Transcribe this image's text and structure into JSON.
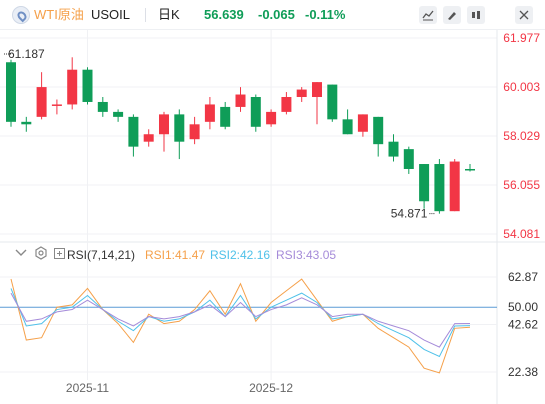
{
  "header": {
    "symbol_name": "WTI原油",
    "symbol_code": "USOIL",
    "period": "日K",
    "price": "56.639",
    "change": "-0.065",
    "change_pct": "-0.11%"
  },
  "indicator": {
    "name": "RSI(7,14,21)",
    "rsi1": "RSI1:41.47",
    "rsi2": "RSI2:42.16",
    "rsi3": "RSI3:43.05",
    "reference_line": "50.00"
  },
  "colors": {
    "up": "#f23645",
    "down": "#0f9d58",
    "rsi1": "#f5a04a",
    "rsi2": "#4fc1e9",
    "rsi3": "#a58bd9",
    "reference": "#5b9bd5",
    "header_price": "#0f9d58"
  },
  "icons": [
    "symbol-icon",
    "line-style-icon",
    "draw-icon",
    "indicator-icon",
    "fullscreen-icon",
    "collapse-icon",
    "settings-icon"
  ],
  "chart_data": [
    {
      "type": "candlestick",
      "y_ticks": [
        "61.977",
        "60.003",
        "58.029",
        "56.055",
        "54.081"
      ],
      "ylim": [
        54.081,
        61.977
      ],
      "annotations": {
        "high": "61.187",
        "low": "54.871"
      },
      "candles": [
        {
          "o": 61.0,
          "h": 61.1,
          "l": 58.4,
          "c": 58.6
        },
        {
          "o": 58.6,
          "h": 58.8,
          "l": 58.2,
          "c": 58.5
        },
        {
          "o": 58.8,
          "h": 60.6,
          "l": 58.7,
          "c": 60.0
        },
        {
          "o": 59.3,
          "h": 59.5,
          "l": 58.9,
          "c": 59.3
        },
        {
          "o": 59.3,
          "h": 61.2,
          "l": 59.1,
          "c": 60.7
        },
        {
          "o": 60.7,
          "h": 60.8,
          "l": 59.3,
          "c": 59.4
        },
        {
          "o": 59.4,
          "h": 59.6,
          "l": 58.8,
          "c": 59.0
        },
        {
          "o": 59.0,
          "h": 59.1,
          "l": 58.6,
          "c": 58.8
        },
        {
          "o": 58.8,
          "h": 58.9,
          "l": 57.2,
          "c": 57.6
        },
        {
          "o": 57.8,
          "h": 58.3,
          "l": 57.6,
          "c": 58.1
        },
        {
          "o": 58.1,
          "h": 59.0,
          "l": 57.4,
          "c": 58.9
        },
        {
          "o": 58.9,
          "h": 59.1,
          "l": 57.1,
          "c": 57.8
        },
        {
          "o": 57.9,
          "h": 58.8,
          "l": 57.7,
          "c": 58.5
        },
        {
          "o": 58.6,
          "h": 59.6,
          "l": 58.3,
          "c": 59.3
        },
        {
          "o": 59.2,
          "h": 59.4,
          "l": 58.3,
          "c": 58.4
        },
        {
          "o": 59.2,
          "h": 60.0,
          "l": 59.0,
          "c": 59.7
        },
        {
          "o": 59.6,
          "h": 59.7,
          "l": 58.2,
          "c": 58.4
        },
        {
          "o": 58.5,
          "h": 59.1,
          "l": 58.4,
          "c": 59.0
        },
        {
          "o": 59.0,
          "h": 59.8,
          "l": 58.9,
          "c": 59.6
        },
        {
          "o": 59.6,
          "h": 60.0,
          "l": 59.4,
          "c": 59.9
        },
        {
          "o": 59.6,
          "h": 60.2,
          "l": 58.5,
          "c": 60.2
        },
        {
          "o": 60.1,
          "h": 60.1,
          "l": 58.6,
          "c": 58.7
        },
        {
          "o": 58.7,
          "h": 59.1,
          "l": 58.1,
          "c": 58.1
        },
        {
          "o": 58.2,
          "h": 58.9,
          "l": 58.0,
          "c": 58.9
        },
        {
          "o": 58.8,
          "h": 58.8,
          "l": 57.2,
          "c": 57.7
        },
        {
          "o": 57.8,
          "h": 58.1,
          "l": 57.0,
          "c": 57.2
        },
        {
          "o": 57.5,
          "h": 57.6,
          "l": 56.5,
          "c": 56.7
        },
        {
          "o": 56.9,
          "h": 56.9,
          "l": 55.1,
          "c": 55.4
        },
        {
          "o": 56.9,
          "h": 57.1,
          "l": 54.9,
          "c": 55.0
        },
        {
          "o": 55.0,
          "h": 57.1,
          "l": 55.0,
          "c": 57.0
        },
        {
          "o": 56.7,
          "h": 56.9,
          "l": 56.6,
          "c": 56.64
        }
      ]
    },
    {
      "type": "line",
      "ylim": [
        22.38,
        62.87
      ],
      "y_ticks": [
        "62.87",
        "50.00",
        "42.62",
        "22.38"
      ],
      "x_labels": [
        {
          "label": "2025-11",
          "index": 5
        },
        {
          "label": "2025-12",
          "index": 17
        }
      ],
      "series": [
        {
          "name": "RSI1",
          "values": [
            62,
            36,
            37,
            50,
            51,
            58,
            49,
            43,
            35,
            47,
            43,
            44,
            49,
            57,
            47,
            60,
            44,
            52,
            57,
            62,
            53,
            44,
            46,
            47,
            41,
            37,
            33,
            24,
            22,
            41,
            41.47
          ]
        },
        {
          "name": "RSI2",
          "values": [
            58,
            42,
            43,
            49,
            50,
            55,
            49,
            44,
            40,
            46,
            44,
            45,
            48,
            53,
            46,
            55,
            45,
            50,
            53,
            56,
            52,
            45,
            46,
            47,
            43,
            40,
            37,
            32,
            29,
            42,
            42.16
          ]
        },
        {
          "name": "RSI3",
          "values": [
            56,
            44,
            45,
            48,
            49,
            53,
            49,
            45,
            42,
            46,
            45,
            46,
            48,
            51,
            46,
            52,
            46,
            49,
            51,
            54,
            51,
            46,
            47,
            47,
            44,
            42,
            40,
            36,
            33,
            43,
            43.05
          ]
        }
      ]
    }
  ]
}
